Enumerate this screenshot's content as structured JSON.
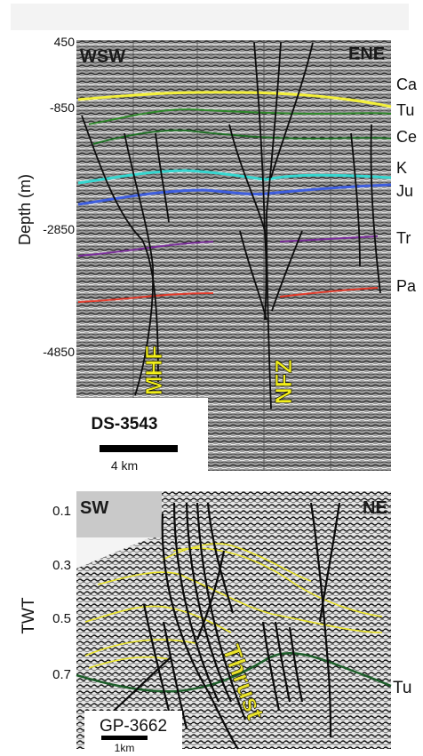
{
  "panel_top": {
    "corners": {
      "left": "WSW",
      "right": "ENE"
    },
    "y_axis": {
      "label": "Depth (m)",
      "ticks": [
        "450",
        "-850",
        "-2850",
        "-4850"
      ]
    },
    "horizons": [
      {
        "label": "Ca",
        "color": "#f2ef3a"
      },
      {
        "label": "Tu",
        "color": "#2f8a2a"
      },
      {
        "label": "Ce",
        "color": "#1f6f25"
      },
      {
        "label": "K",
        "color": "#35d7d0"
      },
      {
        "label": "Ju",
        "color": "#3f5fe0"
      },
      {
        "label": "Tr",
        "color": "#7a2d9a"
      },
      {
        "label": "Pa",
        "color": "#e33a2a"
      }
    ],
    "fault_labels": {
      "mhf": "MHF",
      "nfz": "NFZ"
    },
    "line_id": "DS-3543",
    "scale_label": "4 km"
  },
  "panel_bottom": {
    "corners": {
      "left": "SW",
      "right": "NE"
    },
    "y_axis": {
      "label": "TWT",
      "ticks": [
        "0.1",
        "0.3",
        "0.5",
        "0.7"
      ]
    },
    "horizon_label": "Tu",
    "fault_label": "Thrust",
    "line_id": "GP-3662",
    "scale_label": "1km",
    "colors": {
      "yellow": "#e8e22a",
      "green": "#1d5e2a"
    }
  }
}
